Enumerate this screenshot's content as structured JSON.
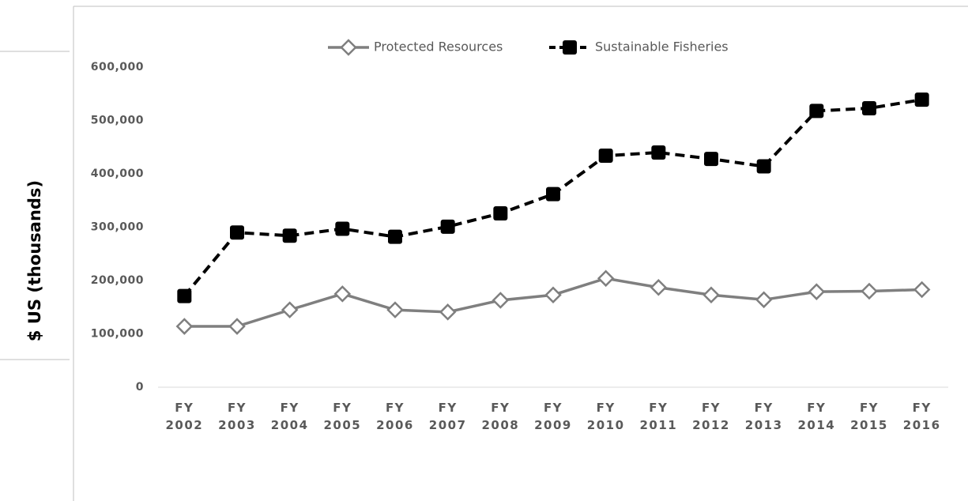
{
  "chart_data": {
    "type": "line",
    "y_axis_label": "$ US (thousands)",
    "categories": [
      "FY 2002",
      "FY 2003",
      "FY 2004",
      "FY 2005",
      "FY 2006",
      "FY 2007",
      "FY 2008",
      "FY 2009",
      "FY 2010",
      "FY 2011",
      "FY 2012",
      "FY 2013",
      "FY 2014",
      "FY 2015",
      "FY 2016"
    ],
    "series": [
      {
        "name": "Protected Resources",
        "color": "#7f7f7f",
        "values": [
          114000,
          114000,
          145000,
          175000,
          145000,
          141000,
          163000,
          173000,
          204000,
          187000,
          173000,
          164000,
          179000,
          180000,
          183000
        ]
      },
      {
        "name": "Sustainable Fisheries",
        "color": "#000000",
        "values": [
          171000,
          290000,
          284000,
          297000,
          282000,
          301000,
          326000,
          362000,
          434000,
          440000,
          428000,
          414000,
          518000,
          523000,
          539000
        ]
      }
    ],
    "ylim": [
      0,
      600000
    ],
    "yticks": [
      0,
      {
        "value": 100000,
        "label": "100,000"
      },
      {
        "value": 200000,
        "label": "200,000"
      },
      {
        "value": 300000,
        "label": "300,000"
      },
      {
        "value": 400000,
        "label": "400,000"
      },
      {
        "value": 500000,
        "label": "500,000"
      },
      {
        "value": 600000,
        "label": "600,000"
      }
    ],
    "legend": "top"
  }
}
